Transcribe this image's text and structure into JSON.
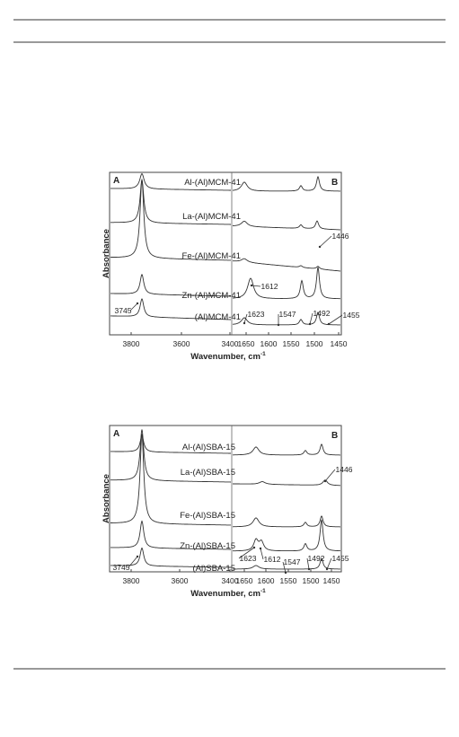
{
  "figures": [
    {
      "panel_left": "A",
      "panel_right": "B",
      "y_label": "Absorbance",
      "x_label": "Wavenumber, cm",
      "x_label_sup": "-1",
      "x_ticks": [
        "3800",
        "3600",
        "3400",
        "1650",
        "1600",
        "1550",
        "1500",
        "1450"
      ],
      "series_labels": [
        "Al-(Al)MCM-41",
        "La-(Al)MCM-41",
        "Fe-(Al)MCM-41",
        "Zn-(Al)MCM-41",
        "(Al)MCM-41"
      ],
      "annotations": [
        "1446",
        "1612",
        "3745",
        "1623",
        "1547",
        "1492",
        "1455"
      ]
    },
    {
      "panel_left": "A",
      "panel_right": "B",
      "y_label": "Absorbance",
      "x_label": "Wavenumber, cm",
      "x_label_sup": "-1",
      "x_ticks": [
        "3800",
        "3600",
        "3400",
        "1650",
        "1600",
        "1550",
        "1500",
        "1450"
      ],
      "series_labels": [
        "Al-(Al)SBA-15",
        "La-(Al)SBA-15",
        "Fe-(Al)SBA-15",
        "Zn-(Al)SBA-15",
        "(Al)SBA-15"
      ],
      "annotations": [
        "1446",
        "1623",
        "1612",
        "1547",
        "3745",
        "1492",
        "1455"
      ]
    }
  ]
}
